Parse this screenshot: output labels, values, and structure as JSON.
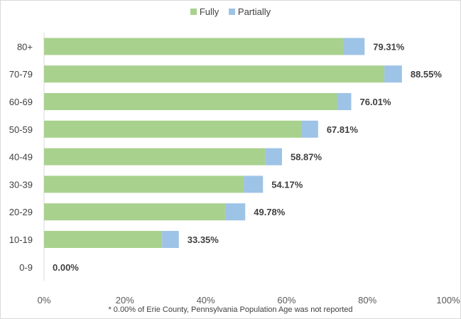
{
  "chart_data": {
    "type": "bar",
    "orientation": "horizontal",
    "stacked": true,
    "categories": [
      "80+",
      "70-79",
      "60-69",
      "50-59",
      "40-49",
      "30-39",
      "20-29",
      "10-19",
      "0-9"
    ],
    "series": [
      {
        "name": "Fully",
        "color": "#a9d18e",
        "values": [
          74.0,
          84.2,
          72.5,
          63.8,
          54.7,
          49.4,
          44.8,
          29.2,
          0.0
        ]
      },
      {
        "name": "Partially",
        "color": "#9dc3e6",
        "values": [
          5.31,
          4.35,
          3.51,
          4.01,
          4.17,
          4.77,
          4.98,
          4.15,
          0.0
        ]
      }
    ],
    "total_labels": [
      "79.31%",
      "88.55%",
      "76.01%",
      "67.81%",
      "58.87%",
      "54.17%",
      "49.78%",
      "33.35%",
      "0.00%"
    ],
    "x_ticks": [
      "0%",
      "20%",
      "40%",
      "60%",
      "80%",
      "100%"
    ],
    "xlim": [
      0,
      100
    ],
    "grid": false,
    "legend_position": "top-center",
    "footnote": "* 0.00% of Erie County, Pennsylvania Population Age was not reported"
  }
}
